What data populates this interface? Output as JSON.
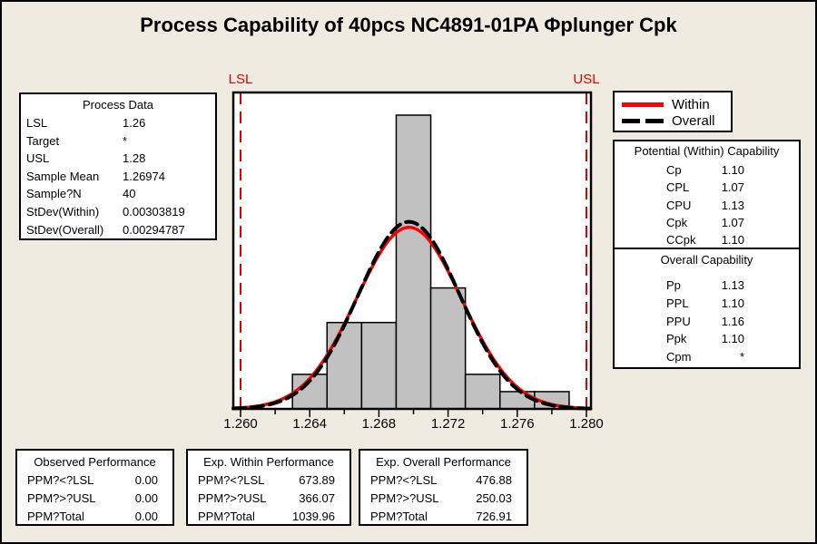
{
  "title": "Process Capability of 40pcs NC4891-01PA Φplunger Cpk",
  "colors": {
    "background": "#EFEBE0",
    "plot_background": "#FFFFFF",
    "bar_fill": "#C1C1C1",
    "bar_border": "#000000",
    "spec_line": "#E00000",
    "within_curve": "#FF0000",
    "overall_curve": "#000000"
  },
  "spec_labels": {
    "lsl": "LSL",
    "usl": "USL"
  },
  "legend": {
    "items": [
      {
        "label": "Within",
        "style": "solid",
        "color": "#FF0000"
      },
      {
        "label": "Overall",
        "style": "dashed",
        "color": "#000000"
      }
    ]
  },
  "process_data": {
    "title": "Process Data",
    "rows": [
      {
        "label": "LSL",
        "value": "1.26"
      },
      {
        "label": "Target",
        "value": "*"
      },
      {
        "label": "USL",
        "value": "1.28"
      },
      {
        "label": "Sample Mean",
        "value": "1.26974"
      },
      {
        "label": "Sample?N",
        "value": "40"
      },
      {
        "label": "StDev(Within)",
        "value": "0.00303819"
      },
      {
        "label": "StDev(Overall)",
        "value": "0.00294787"
      }
    ]
  },
  "potential_capability": {
    "title": "Potential (Within) Capability",
    "rows": [
      {
        "label": "Cp",
        "value": "1.10"
      },
      {
        "label": "CPL",
        "value": "1.07"
      },
      {
        "label": "CPU",
        "value": "1.13"
      },
      {
        "label": "Cpk",
        "value": "1.07"
      },
      {
        "label": "CCpk",
        "value": "1.10"
      }
    ]
  },
  "overall_capability": {
    "title": "Overall Capability",
    "rows": [
      {
        "label": "Pp",
        "value": "1.13"
      },
      {
        "label": "PPL",
        "value": "1.10"
      },
      {
        "label": "PPU",
        "value": "1.16"
      },
      {
        "label": "Ppk",
        "value": "1.10"
      },
      {
        "label": "Cpm",
        "value": "*"
      }
    ]
  },
  "observed_performance": {
    "title": "Observed Performance",
    "rows": [
      {
        "label": "PPM?<?LSL",
        "value": "0.00"
      },
      {
        "label": "PPM?>?USL",
        "value": "0.00"
      },
      {
        "label": "PPM?Total",
        "value": "0.00"
      }
    ]
  },
  "exp_within_performance": {
    "title": "Exp. Within Performance",
    "rows": [
      {
        "label": "PPM?<?LSL",
        "value": "673.89"
      },
      {
        "label": "PPM?>?USL",
        "value": "366.07"
      },
      {
        "label": "PPM?Total",
        "value": "1039.96"
      }
    ]
  },
  "exp_overall_performance": {
    "title": "Exp. Overall Performance",
    "rows": [
      {
        "label": "PPM?<?LSL",
        "value": "476.88"
      },
      {
        "label": "PPM?>?USL",
        "value": "250.03"
      },
      {
        "label": "PPM?Total",
        "value": "726.91"
      }
    ]
  },
  "chart_data": {
    "type": "bar",
    "subtype": "capability-histogram",
    "title": "Process Capability of 40pcs NC4891-01PA Φplunger Cpk",
    "xlabel": "",
    "ylabel": "",
    "grid": false,
    "legend_position": "upper-right",
    "sample_n": 40,
    "lsl": 1.26,
    "usl": 1.28,
    "xlim": [
      1.25958,
      1.28026
    ],
    "bins": {
      "start": 1.263,
      "width": 0.002,
      "counts": [
        2,
        5,
        5,
        17,
        7,
        2,
        1,
        1
      ]
    },
    "x_tick_values": [
      1.26,
      1.262,
      1.264,
      1.266,
      1.268,
      1.27,
      1.272,
      1.274,
      1.276,
      1.278,
      1.28
    ],
    "major_tick_values": [
      1.26,
      1.264,
      1.268,
      1.272,
      1.276,
      1.28
    ],
    "x_tick_labels": [
      "1.260",
      "1.264",
      "1.268",
      "1.272",
      "1.276",
      "1.280"
    ],
    "curves": [
      {
        "name": "Within",
        "mean": 1.26974,
        "stdev": 0.00303819,
        "color": "#FF0000",
        "style": "solid"
      },
      {
        "name": "Overall",
        "mean": 1.26974,
        "stdev": 0.00294787,
        "color": "#000000",
        "style": "dashed"
      }
    ]
  }
}
